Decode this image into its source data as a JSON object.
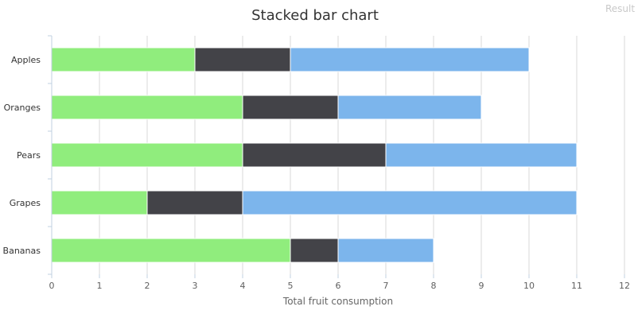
{
  "overlay": {
    "result_label": "Result"
  },
  "chart_data": {
    "type": "bar",
    "orientation": "horizontal",
    "stacked": true,
    "title": "Stacked bar chart",
    "xlabel": "Total fruit consumption",
    "ylabel": "",
    "categories": [
      "Apples",
      "Oranges",
      "Pears",
      "Grapes",
      "Bananas"
    ],
    "xlim": [
      0,
      12
    ],
    "xticks": [
      "0",
      "1",
      "2",
      "3",
      "4",
      "5",
      "6",
      "7",
      "8",
      "9",
      "10",
      "11",
      "12"
    ],
    "grid": "vertical",
    "legend": "none",
    "series": [
      {
        "values": [
          3,
          4,
          4,
          2,
          5
        ],
        "color": "#90ed7d"
      },
      {
        "values": [
          2,
          2,
          3,
          2,
          1
        ],
        "color": "#434348"
      },
      {
        "values": [
          5,
          3,
          4,
          7,
          2
        ],
        "color": "#7cb5ec"
      }
    ]
  }
}
